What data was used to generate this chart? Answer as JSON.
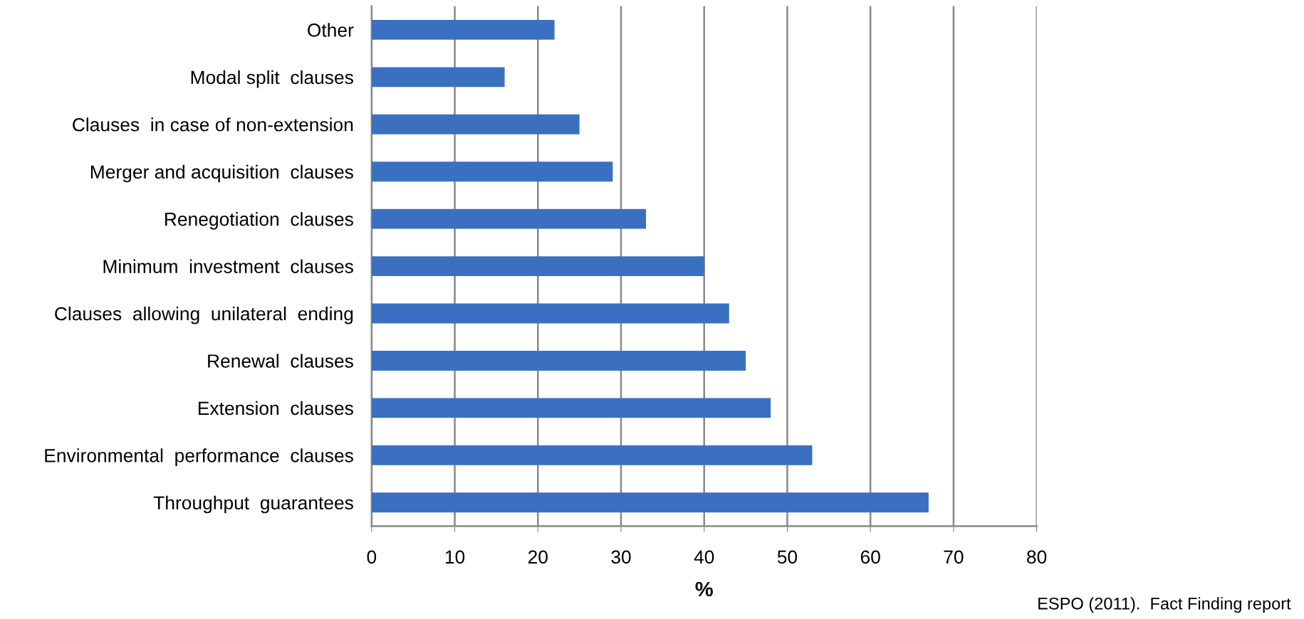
{
  "chart_data": {
    "type": "bar",
    "orientation": "horizontal",
    "categories": [
      "Other",
      "Modal split  clauses",
      "Clauses  in case of non-extension",
      "Merger and acquisition  clauses",
      "Renegotiation  clauses",
      "Minimum  investment  clauses",
      "Clauses  allowing  unilateral  ending",
      "Renewal  clauses",
      "Extension  clauses",
      "Environmental  performance  clauses",
      "Throughput  guarantees"
    ],
    "values": [
      22,
      16,
      25,
      29,
      33,
      40,
      43,
      45,
      48,
      53,
      67
    ],
    "color": "#3a70bf",
    "xlabel": "%",
    "xlim": [
      0,
      80
    ],
    "xticks": [
      0,
      10,
      20,
      30,
      40,
      50,
      60,
      70,
      80
    ],
    "grid": "x",
    "annotations": [
      "ESPO (2011).  Fact Finding report"
    ]
  }
}
